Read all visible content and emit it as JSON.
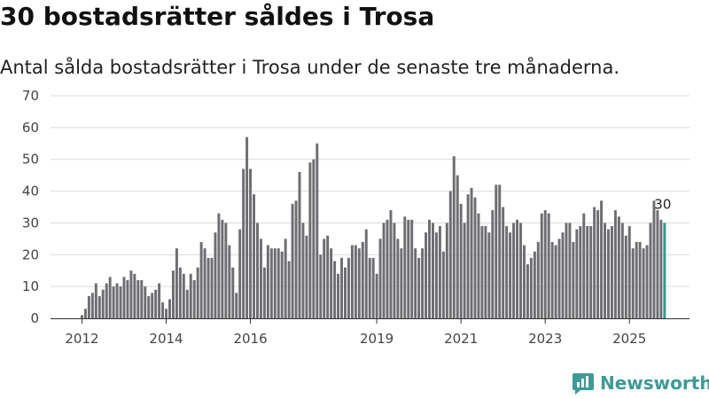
{
  "title": "30 bostadsrätter såldes i Trosa",
  "subtitle": "Antal sålda bostadsrätter i Trosa under de senaste tre månaderna.",
  "brand": {
    "name": "Newsworthy",
    "color": "#3e9a95"
  },
  "colors": {
    "bar": "#6e6d71",
    "highlight": "#2a9d8f",
    "grid": "#d9d9d9",
    "axis": "#333333"
  },
  "chart_data": {
    "type": "bar",
    "title": "30 bostadsrätter såldes i Trosa",
    "xlabel": "",
    "ylabel": "",
    "ylim": [
      0,
      70
    ],
    "yticks": [
      0,
      10,
      20,
      30,
      40,
      50,
      60,
      70
    ],
    "grid": true,
    "series_start": "2012-01",
    "xtick_labels": [
      {
        "label": "2012",
        "index": 0
      },
      {
        "label": "2014",
        "index": 24
      },
      {
        "label": "2016",
        "index": 48
      },
      {
        "label": "2019",
        "index": 84
      },
      {
        "label": "2021",
        "index": 108
      },
      {
        "label": "2023",
        "index": 132
      },
      {
        "label": "2025",
        "index": 156
      }
    ],
    "values": [
      1,
      3,
      7,
      8,
      11,
      7,
      9,
      11,
      13,
      10,
      11,
      10,
      13,
      12,
      15,
      14,
      12,
      12,
      10,
      7,
      8,
      9,
      11,
      5,
      3,
      6,
      15,
      22,
      16,
      14,
      9,
      14,
      12,
      16,
      24,
      22,
      19,
      19,
      27,
      33,
      31,
      30,
      23,
      16,
      8,
      28,
      47,
      57,
      47,
      39,
      30,
      25,
      16,
      23,
      22,
      22,
      22,
      21,
      25,
      18,
      36,
      37,
      46,
      30,
      26,
      49,
      50,
      55,
      20,
      25,
      26,
      22,
      18,
      14,
      19,
      16,
      19,
      23,
      23,
      22,
      24,
      28,
      19,
      19,
      14,
      25,
      30,
      31,
      34,
      30,
      25,
      22,
      32,
      31,
      31,
      22,
      19,
      22,
      27,
      31,
      30,
      27,
      29,
      21,
      30,
      40,
      51,
      45,
      36,
      30,
      39,
      41,
      38,
      33,
      29,
      29,
      27,
      34,
      42,
      42,
      35,
      29,
      27,
      30,
      31,
      30,
      23,
      17,
      19,
      21,
      24,
      33,
      34,
      33,
      24,
      23,
      25,
      27,
      30,
      30,
      24,
      28,
      29,
      33,
      29,
      29,
      35,
      34,
      37,
      30,
      28,
      29,
      34,
      32,
      30,
      26,
      29,
      22,
      24,
      24,
      22,
      23,
      30,
      37,
      34,
      31,
      30
    ],
    "highlight_last": true,
    "annotation": "30"
  }
}
